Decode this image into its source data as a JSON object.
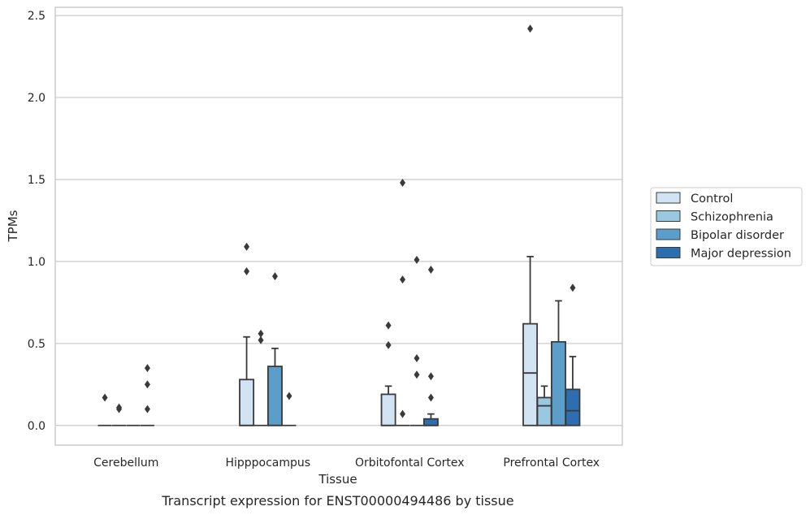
{
  "caption": "Transcript expression for ENST00000494486 by tissue",
  "chart_data": {
    "type": "box",
    "xlabel": "Tissue",
    "ylabel": "TPMs",
    "ylim": [
      -0.12,
      2.55
    ],
    "yticks": [
      "0.0",
      "0.5",
      "1.0",
      "1.5",
      "2.0",
      "2.5"
    ],
    "grid": "horizontal",
    "legend_position": "right",
    "categories": [
      "Cerebellum",
      "Hipppocampus",
      "Orbitofontal Cortex",
      "Prefrontal Cortex"
    ],
    "series": [
      {
        "name": "Control",
        "color": "#d2e3f3",
        "boxes": [
          {
            "q1": 0,
            "median": 0,
            "q3": 0,
            "whislo": 0,
            "whishi": 0,
            "fliers": [
              0.17
            ]
          },
          {
            "q1": 0,
            "median": 0,
            "q3": 0.28,
            "whislo": 0,
            "whishi": 0.54,
            "fliers": [
              0.94,
              1.09
            ]
          },
          {
            "q1": 0,
            "median": 0,
            "q3": 0.19,
            "whislo": 0,
            "whishi": 0.24,
            "fliers": [
              0.49,
              0.61
            ]
          },
          {
            "q1": 0,
            "median": 0.32,
            "q3": 0.62,
            "whislo": 0,
            "whishi": 1.03,
            "fliers": [
              2.42
            ]
          }
        ]
      },
      {
        "name": "Schizophrenia",
        "color": "#9ac8e0",
        "boxes": [
          {
            "q1": 0,
            "median": 0,
            "q3": 0,
            "whislo": 0,
            "whishi": 0,
            "fliers": [
              0.1,
              0.11
            ]
          },
          {
            "q1": 0,
            "median": 0,
            "q3": 0,
            "whislo": 0,
            "whishi": 0,
            "fliers": [
              0.52,
              0.56
            ]
          },
          {
            "q1": 0,
            "median": 0,
            "q3": 0,
            "whislo": 0,
            "whishi": 0,
            "fliers": [
              0.07,
              0.89,
              1.48
            ]
          },
          {
            "q1": 0,
            "median": 0.12,
            "q3": 0.17,
            "whislo": 0,
            "whishi": 0.24,
            "fliers": []
          }
        ]
      },
      {
        "name": "Bipolar disorder",
        "color": "#5a9ec9",
        "boxes": [
          {
            "q1": 0,
            "median": 0,
            "q3": 0,
            "whislo": 0,
            "whishi": 0,
            "fliers": []
          },
          {
            "q1": 0,
            "median": 0,
            "q3": 0.36,
            "whislo": 0,
            "whishi": 0.47,
            "fliers": [
              0.91
            ]
          },
          {
            "q1": 0,
            "median": 0,
            "q3": 0,
            "whislo": 0,
            "whishi": 0,
            "fliers": [
              0.31,
              0.41,
              1.01
            ]
          },
          {
            "q1": 0,
            "median": 0,
            "q3": 0.51,
            "whislo": 0,
            "whishi": 0.76,
            "fliers": []
          }
        ]
      },
      {
        "name": "Major depression",
        "color": "#2c6eaf",
        "boxes": [
          {
            "q1": 0,
            "median": 0,
            "q3": 0,
            "whislo": 0,
            "whishi": 0,
            "fliers": [
              0.1,
              0.25,
              0.35
            ]
          },
          {
            "q1": 0,
            "median": 0,
            "q3": 0,
            "whislo": 0,
            "whishi": 0,
            "fliers": [
              0.18
            ]
          },
          {
            "q1": 0,
            "median": 0,
            "q3": 0.04,
            "whislo": 0,
            "whishi": 0.07,
            "fliers": [
              0.17,
              0.3,
              0.95
            ]
          },
          {
            "q1": 0,
            "median": 0.09,
            "q3": 0.22,
            "whislo": 0,
            "whishi": 0.42,
            "fliers": [
              0.84
            ]
          }
        ]
      }
    ]
  }
}
